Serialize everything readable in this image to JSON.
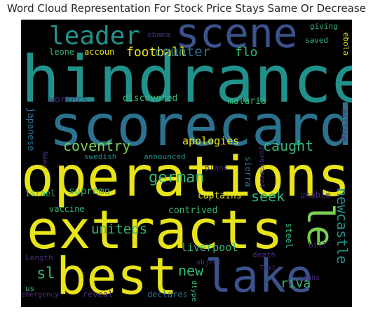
{
  "title": "Word Cloud Representation For Stock Price Stays Same Or Decrease",
  "palette": {
    "background": "#000000",
    "yellow": "#e8e419",
    "lime": "#7ad151",
    "green": "#35b779",
    "teal": "#21918c",
    "blue": "#2c728e",
    "indigo": "#3b528b",
    "purple": "#472d7b",
    "dark_purple": "#440154"
  },
  "words": [
    "hindrance",
    "scorecard",
    "operations",
    "extracts",
    "best",
    "scene",
    "lake",
    "le",
    "leader",
    "football",
    "counter",
    "flo",
    "german",
    "coventry",
    "caught",
    "apologies",
    "seek",
    "newcastle",
    "uniteds",
    "liverpool",
    "new",
    "sl",
    "riva",
    "supremo",
    "captains",
    "contrived",
    "vaccine",
    "malaria",
    "discovered",
    "workers",
    "japanese",
    "sierra",
    "unable",
    "steel",
    "israel",
    "plans",
    "swedish",
    "announced",
    "giving",
    "saved",
    "leone",
    "accoun",
    "obama",
    "ebola",
    "million",
    "government",
    "Name",
    "Length",
    "us",
    "emergency",
    "reveal",
    "declares",
    "dtype",
    "object",
    "death",
    "Text",
    "bill",
    "signs"
  ]
}
